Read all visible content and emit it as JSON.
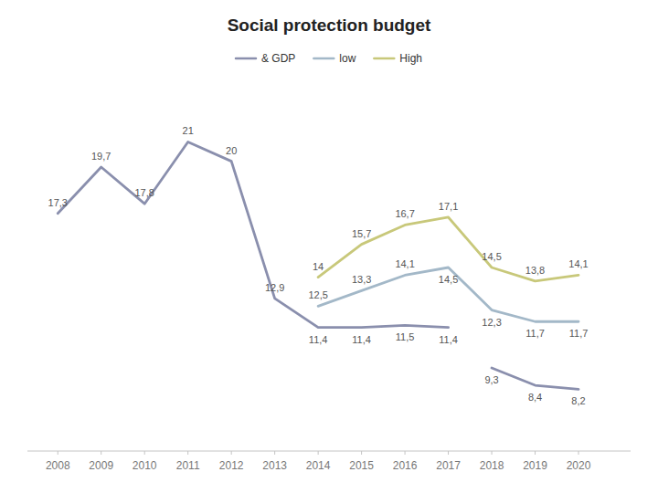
{
  "chart_data": {
    "type": "line",
    "title": "Social protection budget",
    "xlim": [
      2007.3,
      2021.2
    ],
    "ylim": [
      5,
      24
    ],
    "xticks": [
      2008,
      2009,
      2010,
      2011,
      2012,
      2013,
      2014,
      2015,
      2016,
      2017,
      2018,
      2019,
      2020
    ],
    "tick_labels": "x",
    "grid": false,
    "legend": "top",
    "data_labels": true,
    "series": [
      {
        "name": "& GDP",
        "color": "#8a8fad",
        "x": [
          2008,
          2009,
          2010,
          2011,
          2012,
          2013,
          2014,
          2015,
          2016,
          2017,
          null,
          2018,
          2019,
          2020
        ],
        "values": [
          17.3,
          19.7,
          17.8,
          21.0,
          20.0,
          12.9,
          11.4,
          11.4,
          11.5,
          11.4,
          null,
          9.3,
          8.4,
          8.2
        ],
        "value_labels": [
          "17,3",
          "19,7",
          "17,8",
          "21",
          "20",
          "12,9",
          "11,4",
          "11,4",
          "11,5",
          "11,4",
          null,
          "9,3",
          "8,4",
          "8,2"
        ]
      },
      {
        "name": "low",
        "color": "#a3b8c8",
        "x": [
          2014,
          2015,
          2016,
          2017,
          2018,
          2019,
          2020
        ],
        "values": [
          12.5,
          13.3,
          14.1,
          14.5,
          12.3,
          11.7,
          11.7
        ],
        "value_labels": [
          "12,5",
          "13,3",
          "14,1",
          "14,5",
          "12,3",
          "11,7",
          "11,7"
        ]
      },
      {
        "name": "High",
        "color": "#c8c87a",
        "x": [
          2014,
          2015,
          2016,
          2017,
          2018,
          2019,
          2020
        ],
        "values": [
          14.0,
          15.7,
          16.7,
          17.1,
          14.5,
          13.8,
          14.1
        ],
        "value_labels": [
          "14",
          "15,7",
          "16,7",
          "17,1",
          "14,5",
          "13,8",
          "14,1"
        ]
      }
    ]
  }
}
